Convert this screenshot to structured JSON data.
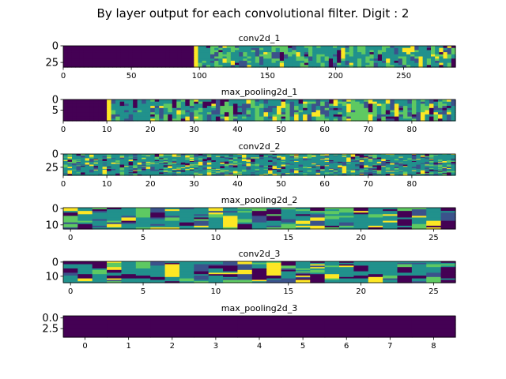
{
  "figure": {
    "title": "By layer output for each convolutional filter. Digit : 2"
  },
  "colormap": [
    "#440154",
    "#3b528b",
    "#21918c",
    "#5ec962",
    "#fde725"
  ],
  "chart_data": [
    {
      "type": "heatmap",
      "title": "conv2d_1",
      "xlim": [
        0,
        288
      ],
      "ylim": [
        32,
        0
      ],
      "xticks": [
        0,
        50,
        100,
        150,
        200,
        250
      ],
      "yticks": [
        0,
        25
      ],
      "pattern": "conv",
      "block_width": 32,
      "cols": 96,
      "rows": 10,
      "seed": 11
    },
    {
      "type": "heatmap",
      "title": "max_pooling2d_1",
      "xlim": [
        0,
        90
      ],
      "ylim": [
        10,
        0
      ],
      "xticks": [
        0,
        10,
        20,
        30,
        40,
        50,
        60,
        70,
        80
      ],
      "yticks": [
        0,
        5
      ],
      "pattern": "pool",
      "block_width": 10,
      "cols": 90,
      "rows": 10,
      "seed": 23
    },
    {
      "type": "heatmap",
      "title": "conv2d_2",
      "xlim": [
        0,
        90
      ],
      "ylim": [
        40,
        0
      ],
      "xticks": [
        0,
        10,
        20,
        30,
        40,
        50,
        60,
        70,
        80
      ],
      "yticks": [
        0,
        25
      ],
      "pattern": "sparse",
      "block_width": 10,
      "cols": 90,
      "rows": 30,
      "seed": 37
    },
    {
      "type": "heatmap",
      "title": "max_pooling2d_2",
      "xlim": [
        -0.5,
        26.5
      ],
      "ylim": [
        12.5,
        -0.5
      ],
      "xticks": [
        0,
        5,
        10,
        15,
        20,
        25
      ],
      "yticks": [
        0,
        10
      ],
      "pattern": "blocks",
      "block_width": 3,
      "cols": 27,
      "rows": 13,
      "seed": 41
    },
    {
      "type": "heatmap",
      "title": "conv2d_3",
      "xlim": [
        -0.5,
        26.5
      ],
      "ylim": [
        14.5,
        -0.5
      ],
      "xticks": [
        0,
        5,
        10,
        15,
        20,
        25
      ],
      "yticks": [
        0,
        10
      ],
      "pattern": "blocks2",
      "block_width": 3,
      "cols": 27,
      "rows": 15,
      "seed": 53
    },
    {
      "type": "heatmap",
      "title": "max_pooling2d_3",
      "xlim": [
        -0.5,
        8.5
      ],
      "ylim": [
        4.5,
        -0.5
      ],
      "xticks": [
        0,
        1,
        2,
        3,
        4,
        5,
        6,
        7,
        8
      ],
      "yticks": [
        0.0,
        2.5
      ],
      "pattern": "uniform",
      "block_width": 1,
      "cols": 9,
      "rows": 5,
      "seed": 1
    }
  ]
}
